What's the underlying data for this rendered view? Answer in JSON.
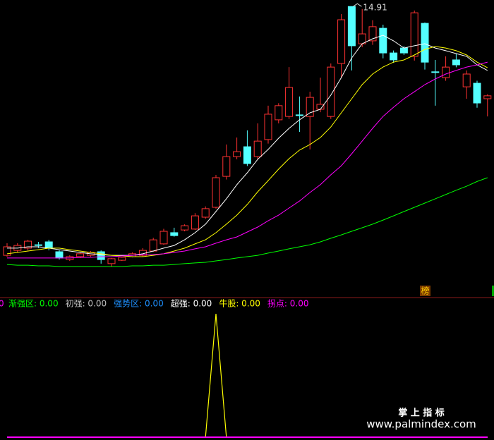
{
  "chart_data": [
    {
      "type": "candlestick",
      "ylim": [
        2,
        15.2
      ],
      "up_color": "#ff3232",
      "down_color": "#54ffff",
      "badge": "榜",
      "open": [
        3.82,
        4.04,
        4.14,
        4.29,
        4.42,
        3.98,
        3.63,
        3.76,
        3.82,
        3.98,
        3.45,
        3.6,
        3.76,
        3.82,
        4.01,
        4.33,
        4.83,
        4.95,
        4.99,
        5.52,
        5.96,
        7.34,
        8.22,
        8.66,
        8.22,
        8.98,
        9.86,
        10.01,
        10.08,
        10.01,
        10.33,
        10.01,
        12.37,
        14.91,
        13.25,
        13.38,
        13.94,
        12.84,
        13.06,
        12.69,
        14.16,
        12.0,
        11.74,
        12.53,
        11.33,
        11.49,
        10.8
      ],
      "close": [
        4.2,
        4.26,
        4.45,
        4.26,
        4.14,
        3.7,
        3.76,
        3.89,
        3.95,
        3.63,
        3.67,
        3.73,
        3.89,
        4.04,
        4.51,
        4.89,
        4.7,
        5.14,
        5.58,
        5.9,
        7.28,
        8.22,
        8.44,
        7.91,
        8.91,
        10.11,
        10.49,
        11.3,
        10.05,
        10.86,
        10.55,
        12.21,
        14.32,
        13.16,
        13.69,
        14.01,
        12.84,
        12.53,
        12.84,
        14.63,
        12.43,
        11.99,
        12.21,
        12.31,
        11.9,
        10.61,
        10.93
      ],
      "high": [
        4.36,
        4.36,
        4.51,
        4.42,
        4.51,
        4.04,
        3.82,
        3.95,
        4.01,
        4.04,
        3.7,
        3.76,
        3.95,
        4.14,
        4.6,
        5.0,
        5.05,
        5.2,
        5.7,
        6.0,
        7.4,
        8.76,
        9.07,
        9.39,
        9.7,
        10.49,
        10.6,
        12.21,
        10.9,
        11.11,
        11.74,
        12.37,
        14.57,
        14.91,
        14.8,
        14.3,
        14.1,
        12.95,
        13.15,
        14.73,
        14.2,
        12.53,
        12.69,
        12.8,
        12.06,
        11.6,
        11.0
      ],
      "low": [
        3.76,
        3.95,
        4.04,
        4.14,
        4.04,
        3.63,
        3.57,
        3.7,
        3.76,
        3.45,
        3.3,
        3.57,
        3.73,
        3.76,
        3.98,
        4.29,
        4.65,
        4.89,
        4.95,
        5.45,
        5.9,
        7.2,
        8.1,
        7.8,
        8.1,
        8.8,
        9.7,
        9.9,
        9.32,
        8.54,
        10.2,
        9.9,
        11.74,
        12.06,
        13.1,
        13.2,
        12.6,
        12.4,
        12.75,
        12.5,
        12.1,
        10.49,
        11.6,
        12.2,
        10.8,
        10.4,
        10.01
      ],
      "lines": [
        {
          "color": "#ffffff",
          "values": [
            4.14,
            4.14,
            4.2,
            4.2,
            4.14,
            4.07,
            4.01,
            3.95,
            3.89,
            3.85,
            3.82,
            3.82,
            3.82,
            3.89,
            4.01,
            4.14,
            4.26,
            4.51,
            4.83,
            5.21,
            5.77,
            6.34,
            6.97,
            7.5,
            8.1,
            8.54,
            9.04,
            9.48,
            9.86,
            10.17,
            10.33,
            10.96,
            11.74,
            12.62,
            13.25,
            13.47,
            13.63,
            13.38,
            13.06,
            13.16,
            13.25,
            13.06,
            12.94,
            12.81,
            12.69,
            12.31,
            12.06
          ]
        },
        {
          "color": "#ffff00",
          "values": [
            3.89,
            3.95,
            4.01,
            4.07,
            4.14,
            4.14,
            4.07,
            4.01,
            3.95,
            3.89,
            3.82,
            3.79,
            3.76,
            3.76,
            3.82,
            3.89,
            4.01,
            4.14,
            4.33,
            4.51,
            4.83,
            5.21,
            5.61,
            6.09,
            6.65,
            7.15,
            7.66,
            8.13,
            8.51,
            8.76,
            9.07,
            9.54,
            10.17,
            10.8,
            11.43,
            11.9,
            12.21,
            12.43,
            12.53,
            12.75,
            13.0,
            13.13,
            13.06,
            12.94,
            12.75,
            12.43,
            12.18
          ]
        },
        {
          "color": "#ff00ff",
          "values": [
            3.7,
            3.7,
            3.7,
            3.7,
            3.7,
            3.7,
            3.7,
            3.73,
            3.73,
            3.76,
            3.76,
            3.79,
            3.82,
            3.85,
            3.85,
            3.89,
            3.95,
            4.01,
            4.11,
            4.2,
            4.36,
            4.51,
            4.64,
            4.86,
            5.08,
            5.36,
            5.61,
            5.93,
            6.24,
            6.62,
            6.97,
            7.41,
            7.81,
            8.35,
            8.91,
            9.48,
            10.01,
            10.42,
            10.8,
            11.11,
            11.43,
            11.68,
            11.9,
            12.06,
            12.21,
            12.31,
            12.43
          ]
        },
        {
          "color": "#00ff00",
          "values": [
            3.41,
            3.38,
            3.38,
            3.35,
            3.35,
            3.32,
            3.32,
            3.32,
            3.32,
            3.32,
            3.32,
            3.32,
            3.35,
            3.35,
            3.38,
            3.38,
            3.41,
            3.45,
            3.48,
            3.51,
            3.57,
            3.63,
            3.7,
            3.76,
            3.82,
            3.92,
            4.01,
            4.11,
            4.2,
            4.29,
            4.42,
            4.58,
            4.73,
            4.89,
            5.05,
            5.21,
            5.39,
            5.58,
            5.77,
            5.96,
            6.15,
            6.34,
            6.53,
            6.72,
            6.9,
            7.11,
            7.28
          ]
        }
      ]
    },
    {
      "type": "line",
      "ylim": [
        0,
        1
      ],
      "clipped_label": "0",
      "series": [
        {
          "name": "渐强区: 0.00",
          "color": "#00ff00",
          "values": [
            0,
            0,
            0,
            0,
            0,
            0,
            0,
            0,
            0,
            0,
            0,
            0,
            0,
            0,
            0,
            0,
            0,
            0,
            0,
            0,
            0,
            0,
            0,
            0,
            0,
            0,
            0,
            0,
            0,
            0,
            0,
            0,
            0,
            0,
            0,
            0,
            0,
            0,
            0,
            0,
            0,
            0,
            0,
            0,
            0,
            0,
            0
          ]
        },
        {
          "name": "初强: 0.00",
          "color": "#c0c0c0",
          "values": [
            0,
            0,
            0,
            0,
            0,
            0,
            0,
            0,
            0,
            0,
            0,
            0,
            0,
            0,
            0,
            0,
            0,
            0,
            0,
            0,
            0,
            0,
            0,
            0,
            0,
            0,
            0,
            0,
            0,
            0,
            0,
            0,
            0,
            0,
            0,
            0,
            0,
            0,
            0,
            0,
            0,
            0,
            0,
            0,
            0,
            0,
            0
          ]
        },
        {
          "name": "强势区: 0.00",
          "color": "#1e90ff",
          "values": [
            0,
            0,
            0,
            0,
            0,
            0,
            0,
            0,
            0,
            0,
            0,
            0,
            0,
            0,
            0,
            0,
            0,
            0,
            0,
            0,
            0,
            0,
            0,
            0,
            0,
            0,
            0,
            0,
            0,
            0,
            0,
            0,
            0,
            0,
            0,
            0,
            0,
            0,
            0,
            0,
            0,
            0,
            0,
            0,
            0,
            0,
            0
          ]
        },
        {
          "name": "超强: 0.00",
          "color": "#ffffff",
          "values": [
            0,
            0,
            0,
            0,
            0,
            0,
            0,
            0,
            0,
            0,
            0,
            0,
            0,
            0,
            0,
            0,
            0,
            0,
            0,
            0,
            0,
            0,
            0,
            0,
            0,
            0,
            0,
            0,
            0,
            0,
            0,
            0,
            0,
            0,
            0,
            0,
            0,
            0,
            0,
            0,
            0,
            0,
            0,
            0,
            0,
            0,
            0
          ]
        },
        {
          "name": "牛股: 0.00",
          "color": "#ffff00",
          "values": [
            0,
            0,
            0,
            0,
            0,
            0,
            0,
            0,
            0,
            0,
            0,
            0,
            0,
            0,
            0,
            0,
            0,
            0,
            0,
            0,
            1,
            0,
            0,
            0,
            0,
            0,
            0,
            0,
            0,
            0,
            0,
            0,
            0,
            0,
            0,
            0,
            0,
            0,
            0,
            0,
            0,
            0,
            0,
            0,
            0,
            0,
            0
          ]
        },
        {
          "name": "拐点: 0.00",
          "color": "#ff00ff",
          "values": [
            0,
            0,
            0,
            0,
            0,
            0,
            0,
            0,
            0,
            0,
            0,
            0,
            0,
            0,
            0,
            0,
            0,
            0,
            0,
            0,
            0,
            0,
            0,
            0,
            0,
            0,
            0,
            0,
            0,
            0,
            0,
            0,
            0,
            0,
            0,
            0,
            0,
            0,
            0,
            0,
            0,
            0,
            0,
            0,
            0,
            0,
            0
          ]
        }
      ]
    }
  ],
  "watermark": {
    "title": "掌 上 指 标",
    "url": "www.palmindex.com"
  }
}
